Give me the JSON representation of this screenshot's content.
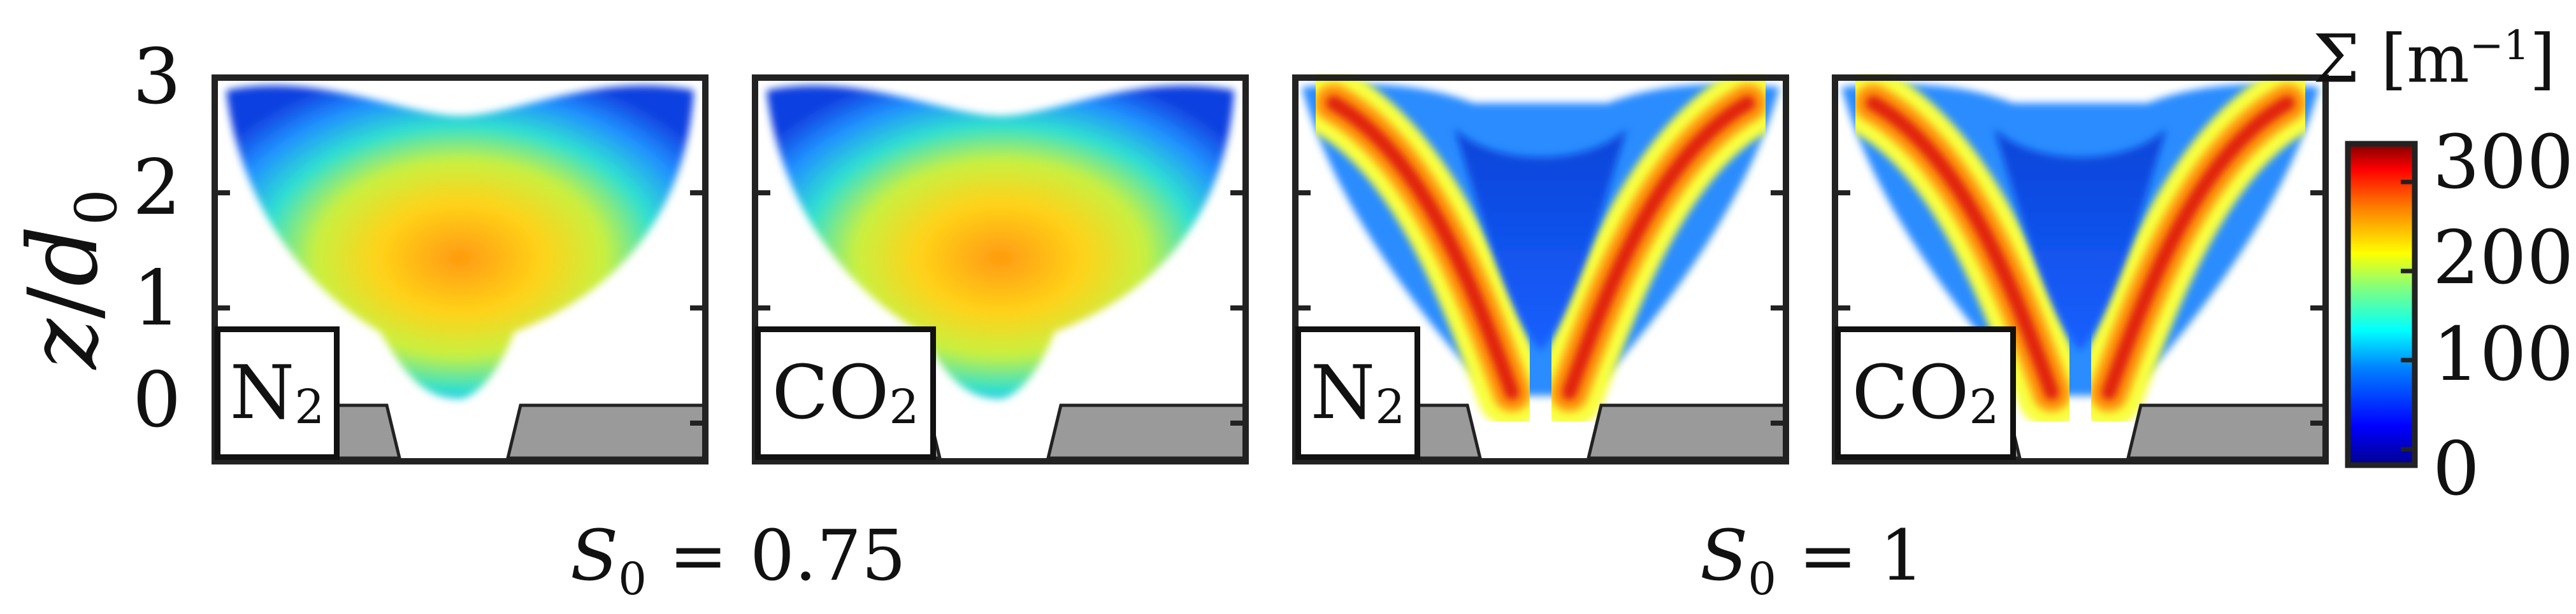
{
  "y_axis": {
    "label_var": "z",
    "label_sep": "/",
    "label_ref": "d",
    "label_ref_sub": "0"
  },
  "colorbar": {
    "label": "Σ [m",
    "label_sup": "−1",
    "label_close": "]",
    "ticks": [
      "300",
      "200",
      "100",
      "0"
    ],
    "range": [
      0,
      300
    ],
    "colormap": [
      "#00008f",
      "#0000ff",
      "#0080ff",
      "#00ffff",
      "#80ff80",
      "#ffff00",
      "#ff8000",
      "#ff0000",
      "#800000"
    ]
  },
  "group_labels": [
    {
      "var": "S",
      "sub": "0",
      "rest": " = 0.75"
    },
    {
      "var": "S",
      "sub": "0",
      "rest": " = 1"
    }
  ],
  "chart_data": {
    "type": "heatmap",
    "ylim": [
      0,
      3
    ],
    "y_ticks": [
      "3",
      "2",
      "1",
      "0"
    ],
    "panels": [
      {
        "gas": "N",
        "gas_sub": "2",
        "swirl": "0.75",
        "shape": "bowl"
      },
      {
        "gas": "CO",
        "gas_sub": "2",
        "swirl": "0.75",
        "shape": "bowl"
      },
      {
        "gas": "N",
        "gas_sub": "2",
        "swirl": "1",
        "shape": "vee"
      },
      {
        "gas": "CO",
        "gas_sub": "2",
        "swirl": "1",
        "shape": "vee"
      }
    ]
  }
}
